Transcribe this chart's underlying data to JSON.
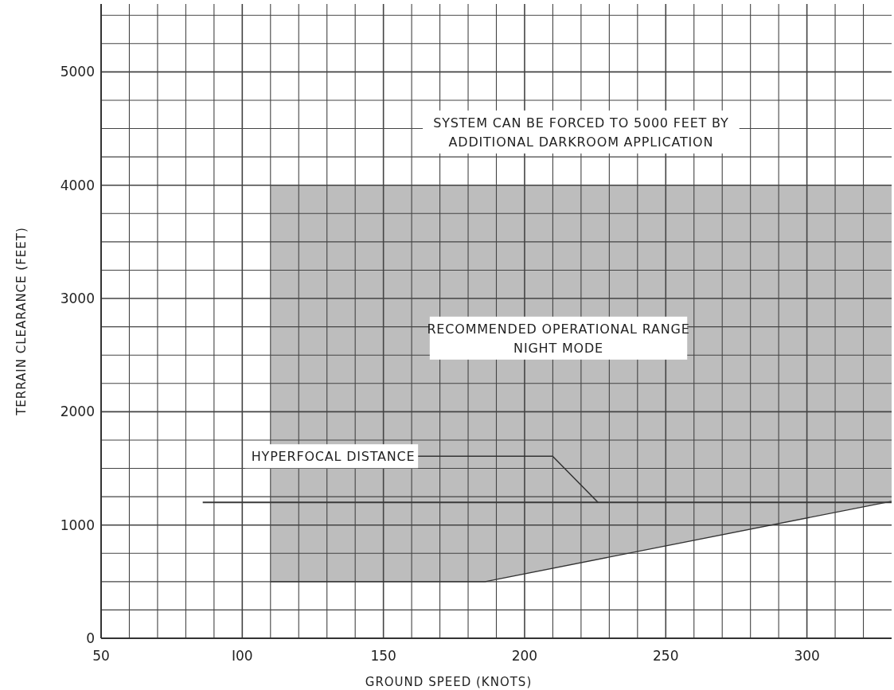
{
  "chart_data": {
    "type": "line",
    "xlabel": "GROUND SPEED (KNOTS)",
    "ylabel": "TERRAIN CLEARANCE (FEET)",
    "xlim": [
      50,
      330
    ],
    "ylim": [
      0,
      5600
    ],
    "xticks": [
      50,
      {
        "value": 60,
        "label": null
      },
      {
        "value": 70,
        "label": null
      },
      {
        "value": 80,
        "label": null
      },
      {
        "value": 90,
        "label": null
      },
      {
        "value": 100,
        "label": "I00"
      },
      {
        "value": 110,
        "label": null
      },
      {
        "value": 120,
        "label": null
      },
      {
        "value": 130,
        "label": null
      },
      {
        "value": 140,
        "label": null
      },
      150,
      {
        "value": 160,
        "label": null
      },
      {
        "value": 170,
        "label": null
      },
      {
        "value": 180,
        "label": null
      },
      {
        "value": 190,
        "label": null
      },
      200,
      {
        "value": 210,
        "label": null
      },
      {
        "value": 220,
        "label": null
      },
      {
        "value": 230,
        "label": null
      },
      {
        "value": 240,
        "label": null
      },
      250,
      {
        "value": 260,
        "label": null
      },
      {
        "value": 270,
        "label": null
      },
      {
        "value": 280,
        "label": null
      },
      {
        "value": 290,
        "label": null
      },
      300,
      {
        "value": 310,
        "label": null
      },
      {
        "value": 320,
        "label": null
      }
    ],
    "yticks": [
      0,
      {
        "value": 250,
        "label": null
      },
      {
        "value": 500,
        "label": null
      },
      {
        "value": 750,
        "label": null
      },
      1000,
      {
        "value": 1250,
        "label": null
      },
      {
        "value": 1500,
        "label": null
      },
      {
        "value": 1750,
        "label": null
      },
      2000,
      {
        "value": 2250,
        "label": null
      },
      {
        "value": 2500,
        "label": null
      },
      {
        "value": 2750,
        "label": null
      },
      3000,
      {
        "value": 3250,
        "label": null
      },
      {
        "value": 3500,
        "label": null
      },
      {
        "value": 3750,
        "label": null
      },
      4000,
      {
        "value": 4250,
        "label": null
      },
      {
        "value": 4500,
        "label": null
      },
      {
        "value": 4750,
        "label": null
      },
      5000,
      {
        "value": 5250,
        "label": null
      },
      {
        "value": 5500,
        "label": null
      }
    ],
    "grid": true,
    "series": [
      {
        "color": "#333333",
        "x": [
          110,
          186,
          330
        ],
        "values": [
          500,
          500,
          1210
        ],
        "lower": [
          500,
          500,
          1210
        ],
        "upper": [
          4000,
          4000,
          4000
        ]
      },
      {
        "color": "#3a3a3a",
        "x": [
          86,
          330
        ],
        "values": [
          1200,
          1200
        ]
      }
    ],
    "annotations": [
      "SYSTEM CAN BE FORCED TO 5000 FEET BY\nADDITIONAL DARKROOM APPLICATION",
      "RECOMMENDED OPERATIONAL RANGE\nNIGHT MODE",
      {
        "text": "HYPERFOCAL DISTANCE",
        "x": 226,
        "y": 1200
      }
    ]
  }
}
